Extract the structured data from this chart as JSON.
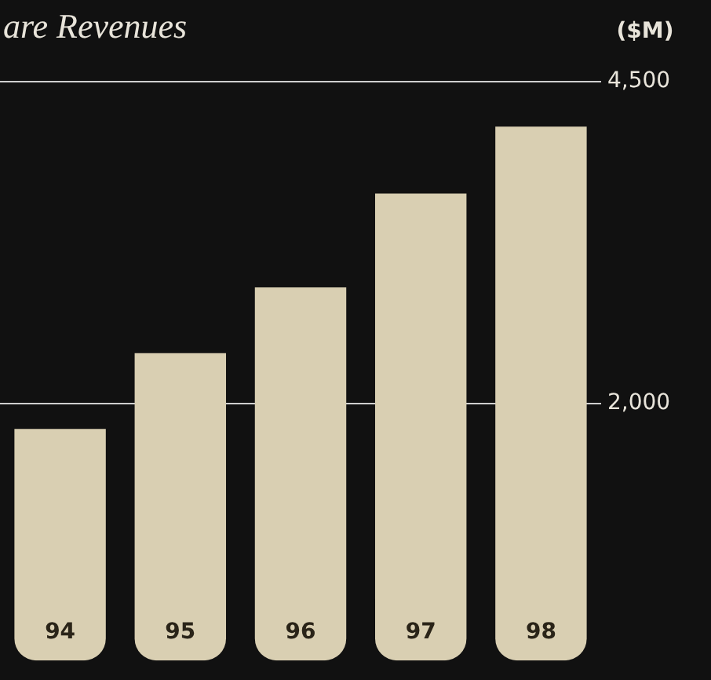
{
  "chart_data": {
    "type": "bar",
    "title": "are Revenues",
    "ylabel": "($M)",
    "categories": [
      "94",
      "95",
      "96",
      "97",
      "98"
    ],
    "values": [
      1800,
      2390,
      2900,
      3630,
      4150
    ],
    "color": "#d9cfb2",
    "ylim": [
      0,
      4500
    ],
    "yticks": [
      {
        "value": 2000,
        "label": "2,000"
      },
      {
        "value": 4500,
        "label": "4,500"
      }
    ],
    "grid": "y",
    "legend": false
  }
}
